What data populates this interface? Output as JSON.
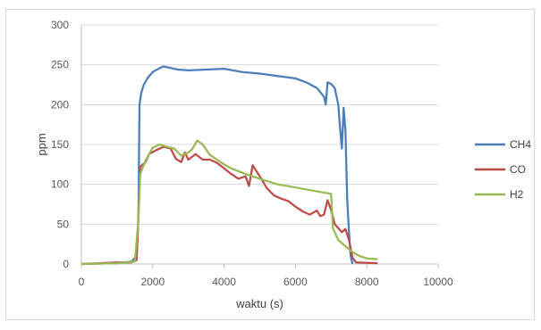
{
  "chart_data": {
    "type": "line",
    "title": "",
    "xlabel": "waktu (s)",
    "ylabel": "ppm",
    "xlim": [
      0,
      10000
    ],
    "ylim": [
      0,
      300
    ],
    "x_ticks": [
      0,
      2000,
      4000,
      6000,
      8000,
      10000
    ],
    "y_ticks": [
      0,
      50,
      100,
      150,
      200,
      250,
      300
    ],
    "x_tick_labels": [
      "0",
      "2000",
      "4000",
      "6000",
      "8000",
      "10000"
    ],
    "y_tick_labels": [
      "0",
      "50",
      "100",
      "150",
      "200",
      "250",
      "300"
    ],
    "grid": "horizontal",
    "legend_position": "right",
    "series": [
      {
        "name": "CH4",
        "color": "#4a7ebb",
        "points": [
          [
            0,
            0
          ],
          [
            1000,
            1
          ],
          [
            1400,
            3
          ],
          [
            1550,
            10
          ],
          [
            1600,
            60
          ],
          [
            1630,
            200
          ],
          [
            1680,
            215
          ],
          [
            1750,
            225
          ],
          [
            1850,
            233
          ],
          [
            2000,
            241
          ],
          [
            2200,
            246
          ],
          [
            2300,
            248
          ],
          [
            2500,
            246
          ],
          [
            2700,
            244
          ],
          [
            3000,
            243
          ],
          [
            3500,
            244
          ],
          [
            4000,
            245
          ],
          [
            4500,
            241
          ],
          [
            5000,
            239
          ],
          [
            5500,
            236
          ],
          [
            6000,
            233
          ],
          [
            6300,
            228
          ],
          [
            6600,
            221
          ],
          [
            6800,
            210
          ],
          [
            6850,
            200
          ],
          [
            6900,
            228
          ],
          [
            7000,
            226
          ],
          [
            7100,
            221
          ],
          [
            7200,
            200
          ],
          [
            7250,
            170
          ],
          [
            7300,
            145
          ],
          [
            7350,
            196
          ],
          [
            7400,
            168
          ],
          [
            7450,
            80
          ],
          [
            7500,
            40
          ],
          [
            7550,
            10
          ],
          [
            7600,
            0
          ]
        ]
      },
      {
        "name": "CO",
        "color": "#be4b48",
        "points": [
          [
            0,
            0
          ],
          [
            1000,
            2
          ],
          [
            1400,
            2
          ],
          [
            1550,
            5
          ],
          [
            1600,
            60
          ],
          [
            1650,
            122
          ],
          [
            1800,
            128
          ],
          [
            1900,
            138
          ],
          [
            2100,
            143
          ],
          [
            2300,
            147
          ],
          [
            2500,
            145
          ],
          [
            2650,
            132
          ],
          [
            2800,
            128
          ],
          [
            2900,
            140
          ],
          [
            3000,
            131
          ],
          [
            3200,
            138
          ],
          [
            3400,
            131
          ],
          [
            3600,
            131
          ],
          [
            3800,
            127
          ],
          [
            4000,
            120
          ],
          [
            4200,
            113
          ],
          [
            4400,
            107
          ],
          [
            4600,
            110
          ],
          [
            4700,
            98
          ],
          [
            4800,
            124
          ],
          [
            5000,
            110
          ],
          [
            5200,
            95
          ],
          [
            5400,
            86
          ],
          [
            5600,
            82
          ],
          [
            5800,
            79
          ],
          [
            6000,
            72
          ],
          [
            6200,
            66
          ],
          [
            6400,
            62
          ],
          [
            6600,
            67
          ],
          [
            6700,
            60
          ],
          [
            6800,
            62
          ],
          [
            6900,
            80
          ],
          [
            7000,
            68
          ],
          [
            7100,
            50
          ],
          [
            7300,
            40
          ],
          [
            7400,
            44
          ],
          [
            7500,
            30
          ],
          [
            7600,
            8
          ],
          [
            7700,
            2
          ],
          [
            8300,
            1
          ]
        ]
      },
      {
        "name": "H2",
        "color": "#98b954",
        "points": [
          [
            0,
            0
          ],
          [
            1000,
            1
          ],
          [
            1500,
            3
          ],
          [
            1600,
            55
          ],
          [
            1650,
            113
          ],
          [
            1800,
            130
          ],
          [
            2000,
            146
          ],
          [
            2200,
            150
          ],
          [
            2400,
            147
          ],
          [
            2600,
            145
          ],
          [
            2800,
            136
          ],
          [
            3000,
            140
          ],
          [
            3100,
            144
          ],
          [
            3250,
            155
          ],
          [
            3400,
            150
          ],
          [
            3600,
            137
          ],
          [
            4000,
            125
          ],
          [
            4200,
            120
          ],
          [
            4600,
            113
          ],
          [
            5000,
            107
          ],
          [
            5500,
            100
          ],
          [
            6000,
            96
          ],
          [
            6500,
            92
          ],
          [
            7000,
            88
          ],
          [
            7050,
            45
          ],
          [
            7200,
            30
          ],
          [
            7600,
            15
          ],
          [
            7800,
            10
          ],
          [
            8000,
            7
          ],
          [
            8300,
            6
          ]
        ]
      }
    ]
  }
}
